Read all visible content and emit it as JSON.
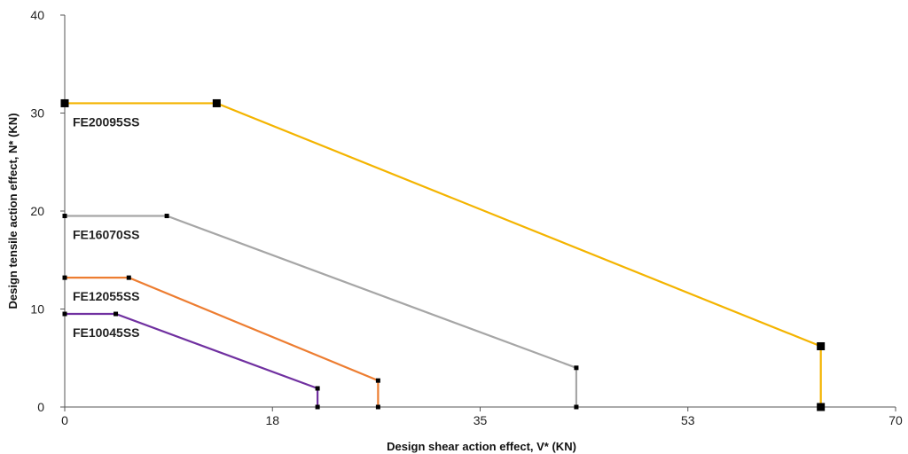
{
  "chart_data": {
    "type": "line",
    "title": "",
    "xlabel": "Design shear action effect, V* (KN)",
    "ylabel": "Design tensile action effect, N* (KN)",
    "xlim": [
      0,
      70
    ],
    "ylim": [
      0,
      40
    ],
    "x_ticks": [
      "0",
      "18",
      "35",
      "53",
      "70"
    ],
    "x_tick_values": [
      0,
      17.5,
      35,
      52.5,
      70
    ],
    "y_ticks": [
      "0",
      "10",
      "20",
      "30",
      "40"
    ],
    "y_tick_values": [
      0,
      10,
      20,
      30,
      40
    ],
    "grid": false,
    "series": [
      {
        "name": "FE20095SS",
        "color": "#f4b400",
        "marker": "large-square",
        "points": [
          [
            0,
            31
          ],
          [
            12.8,
            31
          ],
          [
            63.7,
            6.2
          ],
          [
            63.7,
            0
          ]
        ]
      },
      {
        "name": "FE16070SS",
        "color": "#a6a6a6",
        "marker": "small-square",
        "points": [
          [
            0,
            19.5
          ],
          [
            8.6,
            19.5
          ],
          [
            43.1,
            4
          ],
          [
            43.1,
            0
          ]
        ]
      },
      {
        "name": "FE12055SS",
        "color": "#ed7d31",
        "marker": "small-square",
        "points": [
          [
            0,
            13.2
          ],
          [
            5.4,
            13.2
          ],
          [
            26.4,
            2.7
          ],
          [
            26.4,
            0
          ]
        ]
      },
      {
        "name": "FE10045SS",
        "color": "#7030a0",
        "marker": "small-square",
        "points": [
          [
            0,
            9.5
          ],
          [
            4.3,
            9.5
          ],
          [
            21.3,
            1.9
          ],
          [
            21.3,
            0
          ]
        ]
      }
    ]
  }
}
